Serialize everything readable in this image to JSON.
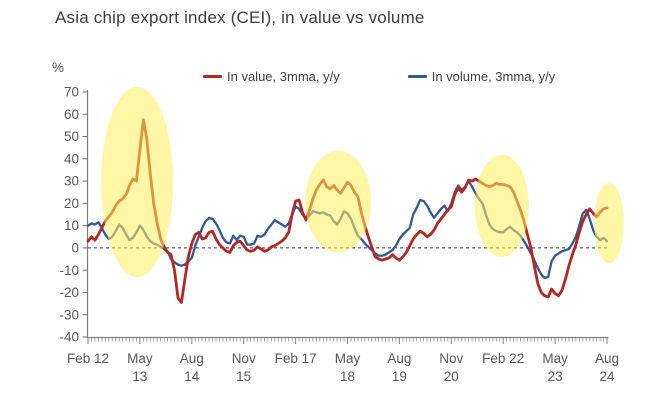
{
  "chart_data": {
    "type": "line",
    "title": "Asia chip export index (CEI), in value vs volume",
    "unit_label": "%",
    "x_start": "Feb 2012",
    "x_end": "Aug 2024",
    "x_major_tick_every_months": 15,
    "x_major_labels": [
      {
        "line1": "Feb 12",
        "line2": ""
      },
      {
        "line1": "May",
        "line2": "13"
      },
      {
        "line1": "Aug",
        "line2": "14"
      },
      {
        "line1": "Nov",
        "line2": "15"
      },
      {
        "line1": "Feb 17",
        "line2": ""
      },
      {
        "line1": "May",
        "line2": "18"
      },
      {
        "line1": "Aug",
        "line2": "19"
      },
      {
        "line1": "Nov",
        "line2": "20"
      },
      {
        "line1": "Feb 22",
        "line2": ""
      },
      {
        "line1": "May",
        "line2": "23"
      },
      {
        "line1": "Aug",
        "line2": "24"
      }
    ],
    "y_axis": {
      "min": -40,
      "max": 70,
      "step": 10
    },
    "zero_line": {
      "value": 0,
      "style": "dashed",
      "color": "#3a3a3a"
    },
    "grid": false,
    "legend_position": "top",
    "series": [
      {
        "name": "In value, 3mma, y/y",
        "color": "#b42723",
        "values": [
          3,
          5,
          3.5,
          6,
          9,
          12,
          14,
          16,
          19,
          21,
          22,
          24,
          28,
          31,
          30,
          44,
          57.5,
          49,
          33,
          20,
          11,
          4,
          0.5,
          -2,
          -3,
          -10,
          -22.5,
          -24.5,
          -14,
          -4,
          2,
          6,
          7,
          4,
          4.5,
          7,
          7.5,
          4,
          1.5,
          0,
          -1.5,
          -2,
          1,
          2.5,
          3,
          1,
          -1,
          -1.5,
          -1,
          0.5,
          -0.5,
          -1.5,
          -1,
          0.5,
          1,
          2,
          3,
          4.5,
          7,
          15,
          21,
          21.5,
          16,
          12.5,
          17,
          22,
          26,
          28.5,
          30.5,
          27.5,
          26.5,
          28,
          26,
          24.5,
          27,
          29.5,
          28,
          25,
          23,
          16,
          10,
          5,
          0.5,
          -4,
          -5,
          -5.5,
          -5,
          -4.5,
          -3,
          -4.5,
          -5.5,
          -4,
          -2,
          1,
          4,
          6,
          7.5,
          6.5,
          5,
          6,
          8,
          11,
          13,
          15,
          17,
          18.5,
          24,
          27,
          25,
          27,
          30.5,
          30,
          31,
          30,
          29,
          28,
          27.5,
          28,
          29,
          28.5,
          28.5,
          28,
          27.5,
          25,
          21,
          17,
          12,
          6,
          0,
          -8,
          -16,
          -20,
          -21.5,
          -22,
          -18.5,
          -20.5,
          -21.5,
          -19,
          -14,
          -8,
          -3,
          1.5,
          7,
          12,
          15,
          17.5,
          15.5,
          14,
          16,
          17.5,
          18
        ]
      },
      {
        "name": "In volume, 3mma, y/y",
        "color": "#31599b",
        "values": [
          10,
          11,
          10.5,
          11.5,
          9,
          6,
          4,
          5,
          7.5,
          10.5,
          9,
          6,
          3.5,
          4.5,
          7,
          10,
          8,
          5,
          3,
          2,
          1.5,
          0.5,
          -0.5,
          -1.5,
          -5,
          -6.5,
          -7.5,
          -8,
          -7.5,
          -6,
          -4.5,
          1,
          5,
          9,
          12,
          13.5,
          13,
          11,
          8,
          4.5,
          2.5,
          2,
          5.5,
          3.5,
          5.5,
          5,
          1.5,
          1.5,
          2,
          5.5,
          5,
          6,
          8.5,
          10.5,
          12.5,
          11.5,
          10.5,
          9.5,
          11,
          15,
          18.5,
          17.5,
          15,
          13,
          14.5,
          16.5,
          16,
          15.5,
          16,
          15,
          14.5,
          12,
          10.5,
          13,
          16.5,
          15.5,
          13,
          9,
          5.5,
          4,
          2,
          0.5,
          -1,
          -2.5,
          -3.5,
          -3.5,
          -3,
          -2,
          -1,
          1,
          4,
          6,
          7.5,
          9,
          15,
          18,
          21.5,
          21,
          19,
          16,
          13.5,
          15.5,
          17.5,
          19,
          16.5,
          20,
          25,
          28,
          26,
          27.5,
          30,
          27.5,
          24.5,
          22,
          20,
          15,
          10.5,
          8.5,
          7.5,
          7,
          7,
          8.5,
          9.5,
          8,
          7,
          5.5,
          3,
          0.5,
          -2.5,
          -5.5,
          -9,
          -12,
          -13.5,
          -13,
          -6,
          -3.5,
          -2.5,
          -1.5,
          -1,
          -0.5,
          2,
          5,
          10,
          15.5,
          17,
          13,
          8,
          5,
          3.5,
          4.5,
          3
        ]
      }
    ],
    "highlights": [
      {
        "shape": "ellipse",
        "color": "#ffee5c",
        "opacity": 0.55,
        "center_month": 14.2,
        "center_value": 29.6,
        "radius_months": 10.4,
        "radius_values": 42.7
      },
      {
        "shape": "ellipse",
        "color": "#ffee5c",
        "opacity": 0.55,
        "center_month": 72.3,
        "center_value": 20.7,
        "radius_months": 9.5,
        "radius_values": 22.9
      },
      {
        "shape": "ellipse",
        "color": "#ffee5c",
        "opacity": 0.55,
        "center_month": 119.6,
        "center_value": 18.9,
        "radius_months": 7.8,
        "radius_values": 22.9
      },
      {
        "shape": "ellipse",
        "color": "#ffee5c",
        "opacity": 0.55,
        "center_month": 150.6,
        "center_value": 11.2,
        "radius_months": 4.3,
        "radius_values": 18
      }
    ]
  }
}
